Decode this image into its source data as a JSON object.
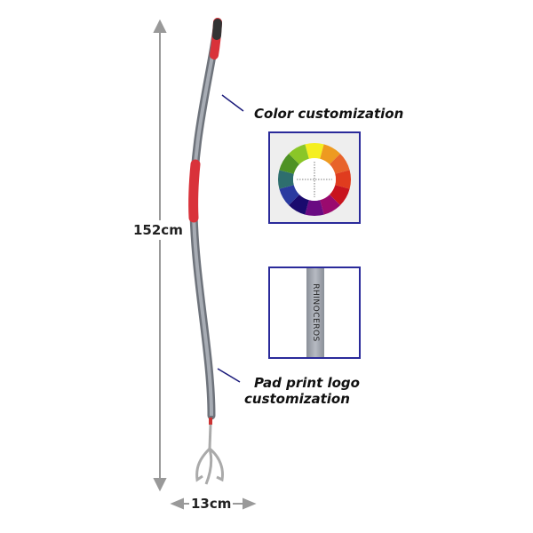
{
  "labels": {
    "color": "Color customization",
    "logo_line1": "Pad print logo",
    "logo_line2": "customization"
  },
  "dimensions": {
    "height": "152cm",
    "width": "13cm"
  },
  "logo_text": "RHINOCEROS",
  "colors": {
    "handle": "#8a8f98",
    "grip": "#d9323a",
    "box_border": "#2a2a9a",
    "arrow": "#999999"
  }
}
